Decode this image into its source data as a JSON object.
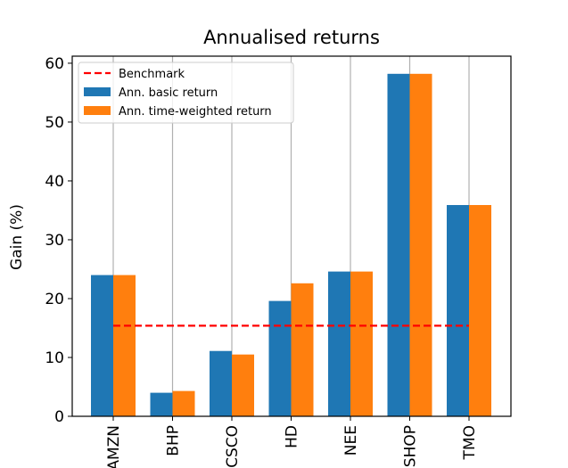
{
  "chart_data": {
    "type": "bar",
    "title": "Annualised returns",
    "xlabel": "",
    "ylabel": "Gain (%)",
    "categories": [
      "AMZN",
      "BHP",
      "CSCO",
      "HD",
      "NEE",
      "SHOP",
      "TMO"
    ],
    "series": [
      {
        "name": "Ann. basic return",
        "color": "#1f77b4",
        "values": [
          24.0,
          4.0,
          11.1,
          19.6,
          24.6,
          58.2,
          35.9
        ]
      },
      {
        "name": "Ann. time-weighted return",
        "color": "#ff7f0e",
        "values": [
          24.0,
          4.3,
          10.5,
          22.6,
          24.6,
          58.2,
          35.9
        ]
      }
    ],
    "benchmark": {
      "name": "Benchmark",
      "value": 15.4,
      "color": "#ff0000",
      "style": "dashed"
    },
    "ylim": [
      0,
      61.2
    ],
    "yticks": [
      0,
      10,
      20,
      30,
      40,
      50,
      60
    ],
    "grid": "vertical",
    "legend_position": "top-left"
  }
}
